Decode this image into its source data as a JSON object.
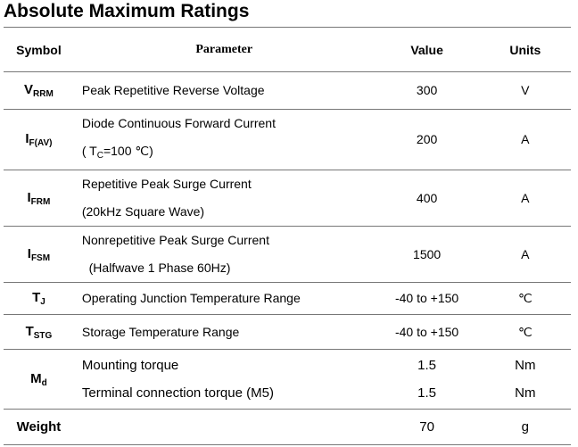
{
  "title": "Absolute Maximum Ratings",
  "table": {
    "header": [
      "Symbol",
      "Parameter",
      "Value",
      "Units"
    ],
    "rows": [
      {
        "symbol": {
          "text": "V",
          "sub": "RRM"
        },
        "parameter": [
          "Peak Repetitive Reverse Voltage"
        ],
        "value": [
          "300"
        ],
        "units": [
          "V"
        ]
      },
      {
        "symbol": {
          "text": "I",
          "sub": "F(AV)"
        },
        "parameter": [
          "Diode Continuous Forward Current",
          {
            "text": "( T",
            "sub": "C",
            "after": "=100 ℃)"
          }
        ],
        "value": [
          "200"
        ],
        "units": [
          "A"
        ]
      },
      {
        "symbol": {
          "text": "I",
          "sub": "FRM"
        },
        "parameter": [
          "Repetitive Peak Surge Current",
          "(20kHz Square Wave)"
        ],
        "value": [
          "400"
        ],
        "units": [
          "A"
        ]
      },
      {
        "symbol": {
          "text": "I",
          "sub": "FSM"
        },
        "parameter": [
          "Nonrepetitive Peak Surge Current",
          "  (Halfwave 1 Phase 60Hz)"
        ],
        "value": [
          "1500"
        ],
        "units": [
          "A"
        ]
      },
      {
        "symbol": {
          "text": "T",
          "sub": "J"
        },
        "parameter": [
          "Operating Junction Temperature Range"
        ],
        "value": [
          "-40 to +150"
        ],
        "units": [
          "℃"
        ]
      },
      {
        "symbol": {
          "text": "T",
          "sub": "STG"
        },
        "parameter": [
          "Storage Temperature Range"
        ],
        "value": [
          "-40 to +150"
        ],
        "units": [
          "℃"
        ]
      },
      {
        "symbol": {
          "text": "M",
          "sub": "d"
        },
        "parameter": [
          "Mounting torque",
          "Terminal connection torque (M5)"
        ],
        "value": [
          "1.5",
          "1.5"
        ],
        "units": [
          "Nm",
          "Nm"
        ]
      },
      {
        "symbol": {
          "text": "Weight"
        },
        "parameter": [],
        "value": [
          "70"
        ],
        "units": [
          "g"
        ]
      }
    ]
  }
}
